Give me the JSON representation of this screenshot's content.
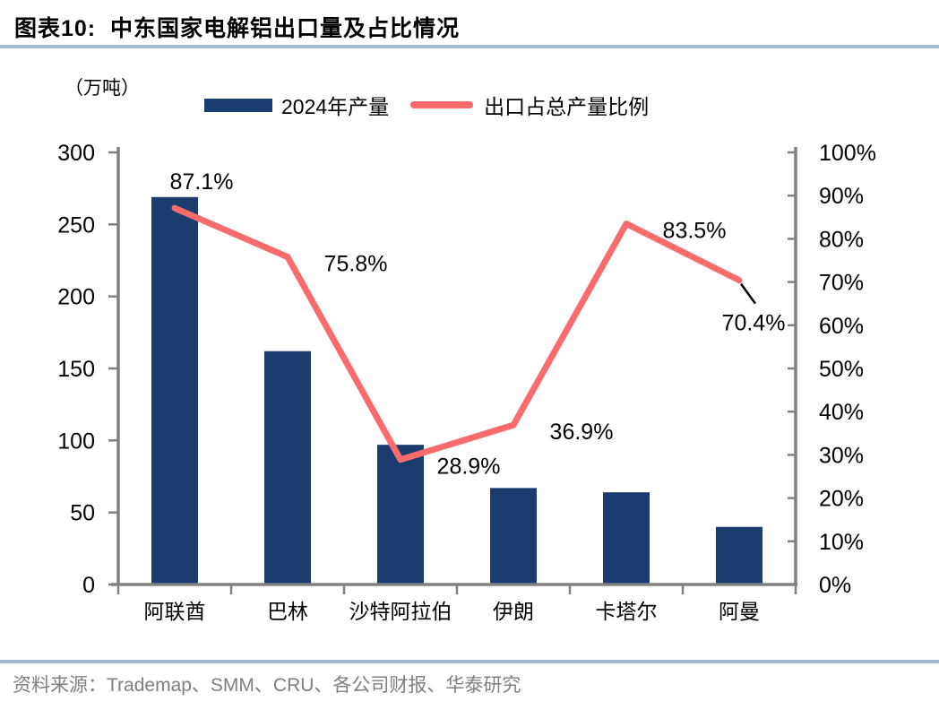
{
  "header": {
    "title": "图表10:  中东国家电解铝出口量及占比情况"
  },
  "unit_label": "（万吨）",
  "legend": {
    "production_label": "2024年产量",
    "ratio_label": "出口占总产量比例"
  },
  "footer": {
    "source": "资料来源：Trademap、SMM、CRU、各公司财报、华泰研究"
  },
  "colors": {
    "bar": "#1B3C6E",
    "line": "#F96B6C",
    "divider": "#A6BBD3",
    "axis": "#808080",
    "source_text": "#7F7F7F",
    "label_text": "#000000"
  },
  "chart_data": {
    "type": "bar+line",
    "title": "中东国家电解铝出口量及占比情况",
    "categories": [
      "阿联酋",
      "巴林",
      "沙特阿拉伯",
      "伊朗",
      "卡塔尔",
      "阿曼"
    ],
    "series": [
      {
        "name": "2024年产量",
        "type": "bar",
        "axis": "left",
        "unit": "万吨",
        "values": [
          269,
          162,
          97,
          67,
          64,
          40
        ]
      },
      {
        "name": "出口占总产量比例",
        "type": "line",
        "axis": "right",
        "values": [
          87.1,
          75.8,
          28.9,
          36.9,
          83.5,
          70.4
        ],
        "point_labels": [
          "87.1%",
          "75.8%",
          "28.9%",
          "36.9%",
          "83.5%",
          "70.4%"
        ]
      }
    ],
    "left_axis": {
      "label": "（万吨）",
      "min": 0,
      "max": 300,
      "step": 50,
      "ticks": [
        "300",
        "250",
        "200",
        "150",
        "100",
        "50",
        "0"
      ]
    },
    "right_axis": {
      "min": 0,
      "max": 100,
      "step": 10,
      "ticks": [
        "100%",
        "90%",
        "80%",
        "70%",
        "60%",
        "50%",
        "40%",
        "30%",
        "20%",
        "10%",
        "0%"
      ]
    },
    "grid": false,
    "legend_position": "top"
  }
}
